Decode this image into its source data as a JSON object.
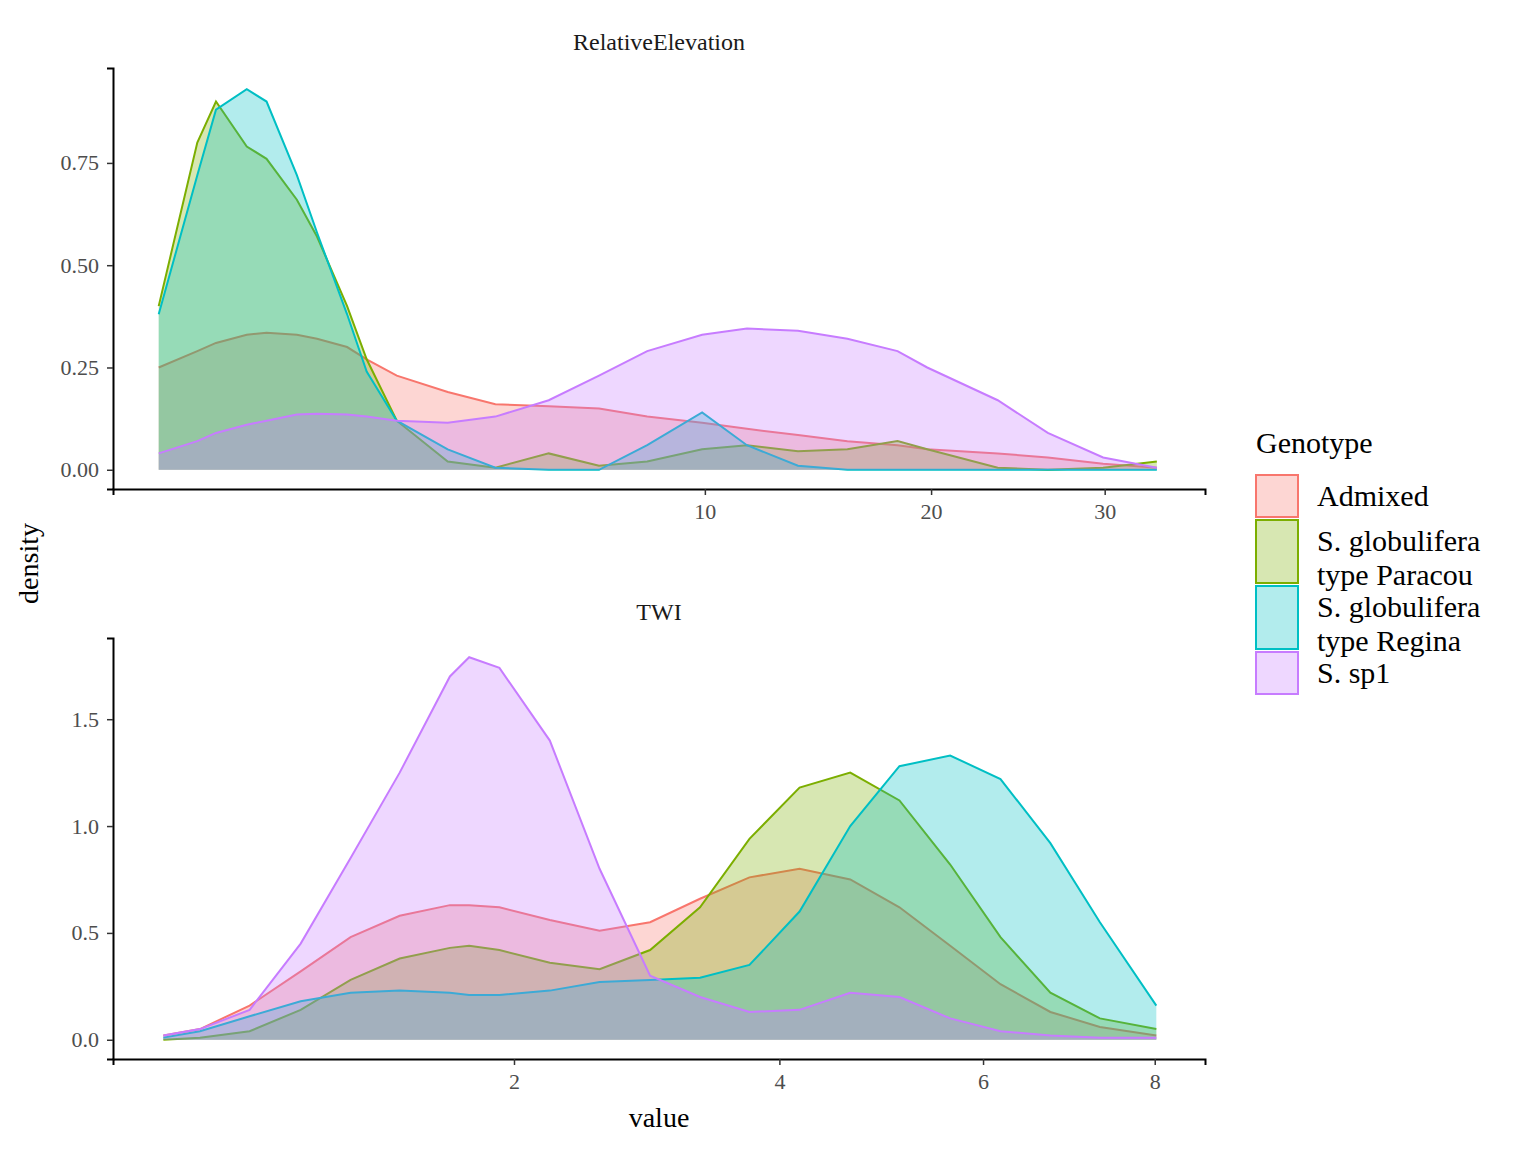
{
  "chart_data": [
    {
      "type": "area",
      "title": "RelativeElevation",
      "y_label": "density",
      "legend": "right",
      "legend_title": "Genotype",
      "x": [
        0,
        0.05,
        0.11,
        0.26,
        0.39,
        0.64,
        0.84,
        1.19,
        1.45,
        1.9,
        2.8,
        3.8,
        5.1,
        6.5,
        8,
        9.9,
        11.6,
        13.7,
        15.9,
        18.3,
        19.8,
        23.6,
        26.5,
        29.9,
        33.4
      ],
      "xlim": [
        -0.07,
        36.7
      ],
      "xticks": [
        10,
        20,
        30
      ],
      "ylim": [
        -0.047,
        0.982
      ],
      "yticks": [
        {
          "value": 0,
          "label": "0.00"
        },
        {
          "value": 0.25,
          "label": "0.25"
        },
        {
          "value": 0.5,
          "label": "0.50"
        },
        {
          "value": 0.75,
          "label": "0.75"
        }
      ],
      "series": [
        {
          "name": "Admixed",
          "color": "#F8766D",
          "values": [
            0.25,
            0.29,
            0.31,
            0.33,
            0.335,
            0.33,
            0.32,
            0.3,
            0.27,
            0.23,
            0.19,
            0.16,
            0.155,
            0.15,
            0.13,
            0.115,
            0.1,
            0.085,
            0.07,
            0.06,
            0.05,
            0.04,
            0.03,
            0.015,
            0.005
          ]
        },
        {
          "name": "S. globulifera type Paracou",
          "color": "#7CAE00",
          "values": [
            0.4,
            0.8,
            0.9,
            0.79,
            0.76,
            0.66,
            0.57,
            0.4,
            0.27,
            0.12,
            0.02,
            0.005,
            0.04,
            0.01,
            0.02,
            0.05,
            0.06,
            0.045,
            0.05,
            0.07,
            0.05,
            0.005,
            0.0,
            0.005,
            0.02
          ]
        },
        {
          "name": "S. globulifera type Regina",
          "color": "#00BFC4",
          "values": [
            0.38,
            0.72,
            0.88,
            0.93,
            0.9,
            0.72,
            0.58,
            0.38,
            0.24,
            0.12,
            0.05,
            0.005,
            0.0,
            0.0,
            0.06,
            0.14,
            0.06,
            0.01,
            0.0,
            0.0,
            0.0,
            0.0,
            0.0,
            0.0,
            0.0
          ]
        },
        {
          "name": "S. sp1",
          "color": "#C77CFF",
          "values": [
            0.04,
            0.07,
            0.09,
            0.11,
            0.12,
            0.135,
            0.137,
            0.135,
            0.13,
            0.12,
            0.115,
            0.13,
            0.17,
            0.23,
            0.29,
            0.33,
            0.345,
            0.34,
            0.32,
            0.29,
            0.25,
            0.17,
            0.09,
            0.03,
            0.005
          ]
        }
      ]
    },
    {
      "type": "area",
      "title": "TWI",
      "x_label": "value",
      "x": [
        0.41,
        0.52,
        0.69,
        0.89,
        1.11,
        1.35,
        1.62,
        1.73,
        1.91,
        2.23,
        2.57,
        2.94,
        3.33,
        3.74,
        4.18,
        4.65,
        5.13,
        5.65,
        6.19,
        6.75,
        7.33,
        8.02
      ],
      "xlim": [
        0.28,
        8.64
      ],
      "xticks": [
        2,
        4,
        6,
        8
      ],
      "ylim": [
        -0.09,
        1.88
      ],
      "yticks": [
        {
          "value": 0,
          "label": "0.0"
        },
        {
          "value": 0.5,
          "label": "0.5"
        },
        {
          "value": 1,
          "label": "1.0"
        },
        {
          "value": 1.5,
          "label": "1.5"
        }
      ],
      "series": [
        {
          "name": "Admixed",
          "color": "#F8766D",
          "values": [
            0.02,
            0.05,
            0.16,
            0.32,
            0.48,
            0.58,
            0.63,
            0.63,
            0.62,
            0.56,
            0.51,
            0.55,
            0.66,
            0.76,
            0.8,
            0.75,
            0.62,
            0.44,
            0.26,
            0.13,
            0.06,
            0.02
          ]
        },
        {
          "name": "S. globulifera type Paracou",
          "color": "#7CAE00",
          "values": [
            0.0,
            0.01,
            0.04,
            0.14,
            0.28,
            0.38,
            0.43,
            0.44,
            0.42,
            0.36,
            0.33,
            0.42,
            0.62,
            0.94,
            1.18,
            1.25,
            1.12,
            0.82,
            0.48,
            0.22,
            0.1,
            0.05
          ]
        },
        {
          "name": "S. globulifera type Regina",
          "color": "#00BFC4",
          "values": [
            0.01,
            0.04,
            0.11,
            0.18,
            0.22,
            0.23,
            0.22,
            0.21,
            0.21,
            0.23,
            0.27,
            0.28,
            0.29,
            0.35,
            0.6,
            1.0,
            1.28,
            1.33,
            1.22,
            0.92,
            0.55,
            0.16
          ]
        },
        {
          "name": "S. sp1",
          "color": "#C77CFF",
          "values": [
            0.02,
            0.05,
            0.14,
            0.45,
            0.85,
            1.25,
            1.7,
            1.79,
            1.74,
            1.4,
            0.8,
            0.3,
            0.2,
            0.13,
            0.14,
            0.22,
            0.2,
            0.1,
            0.04,
            0.02,
            0.01,
            0.01
          ]
        }
      ]
    }
  ]
}
